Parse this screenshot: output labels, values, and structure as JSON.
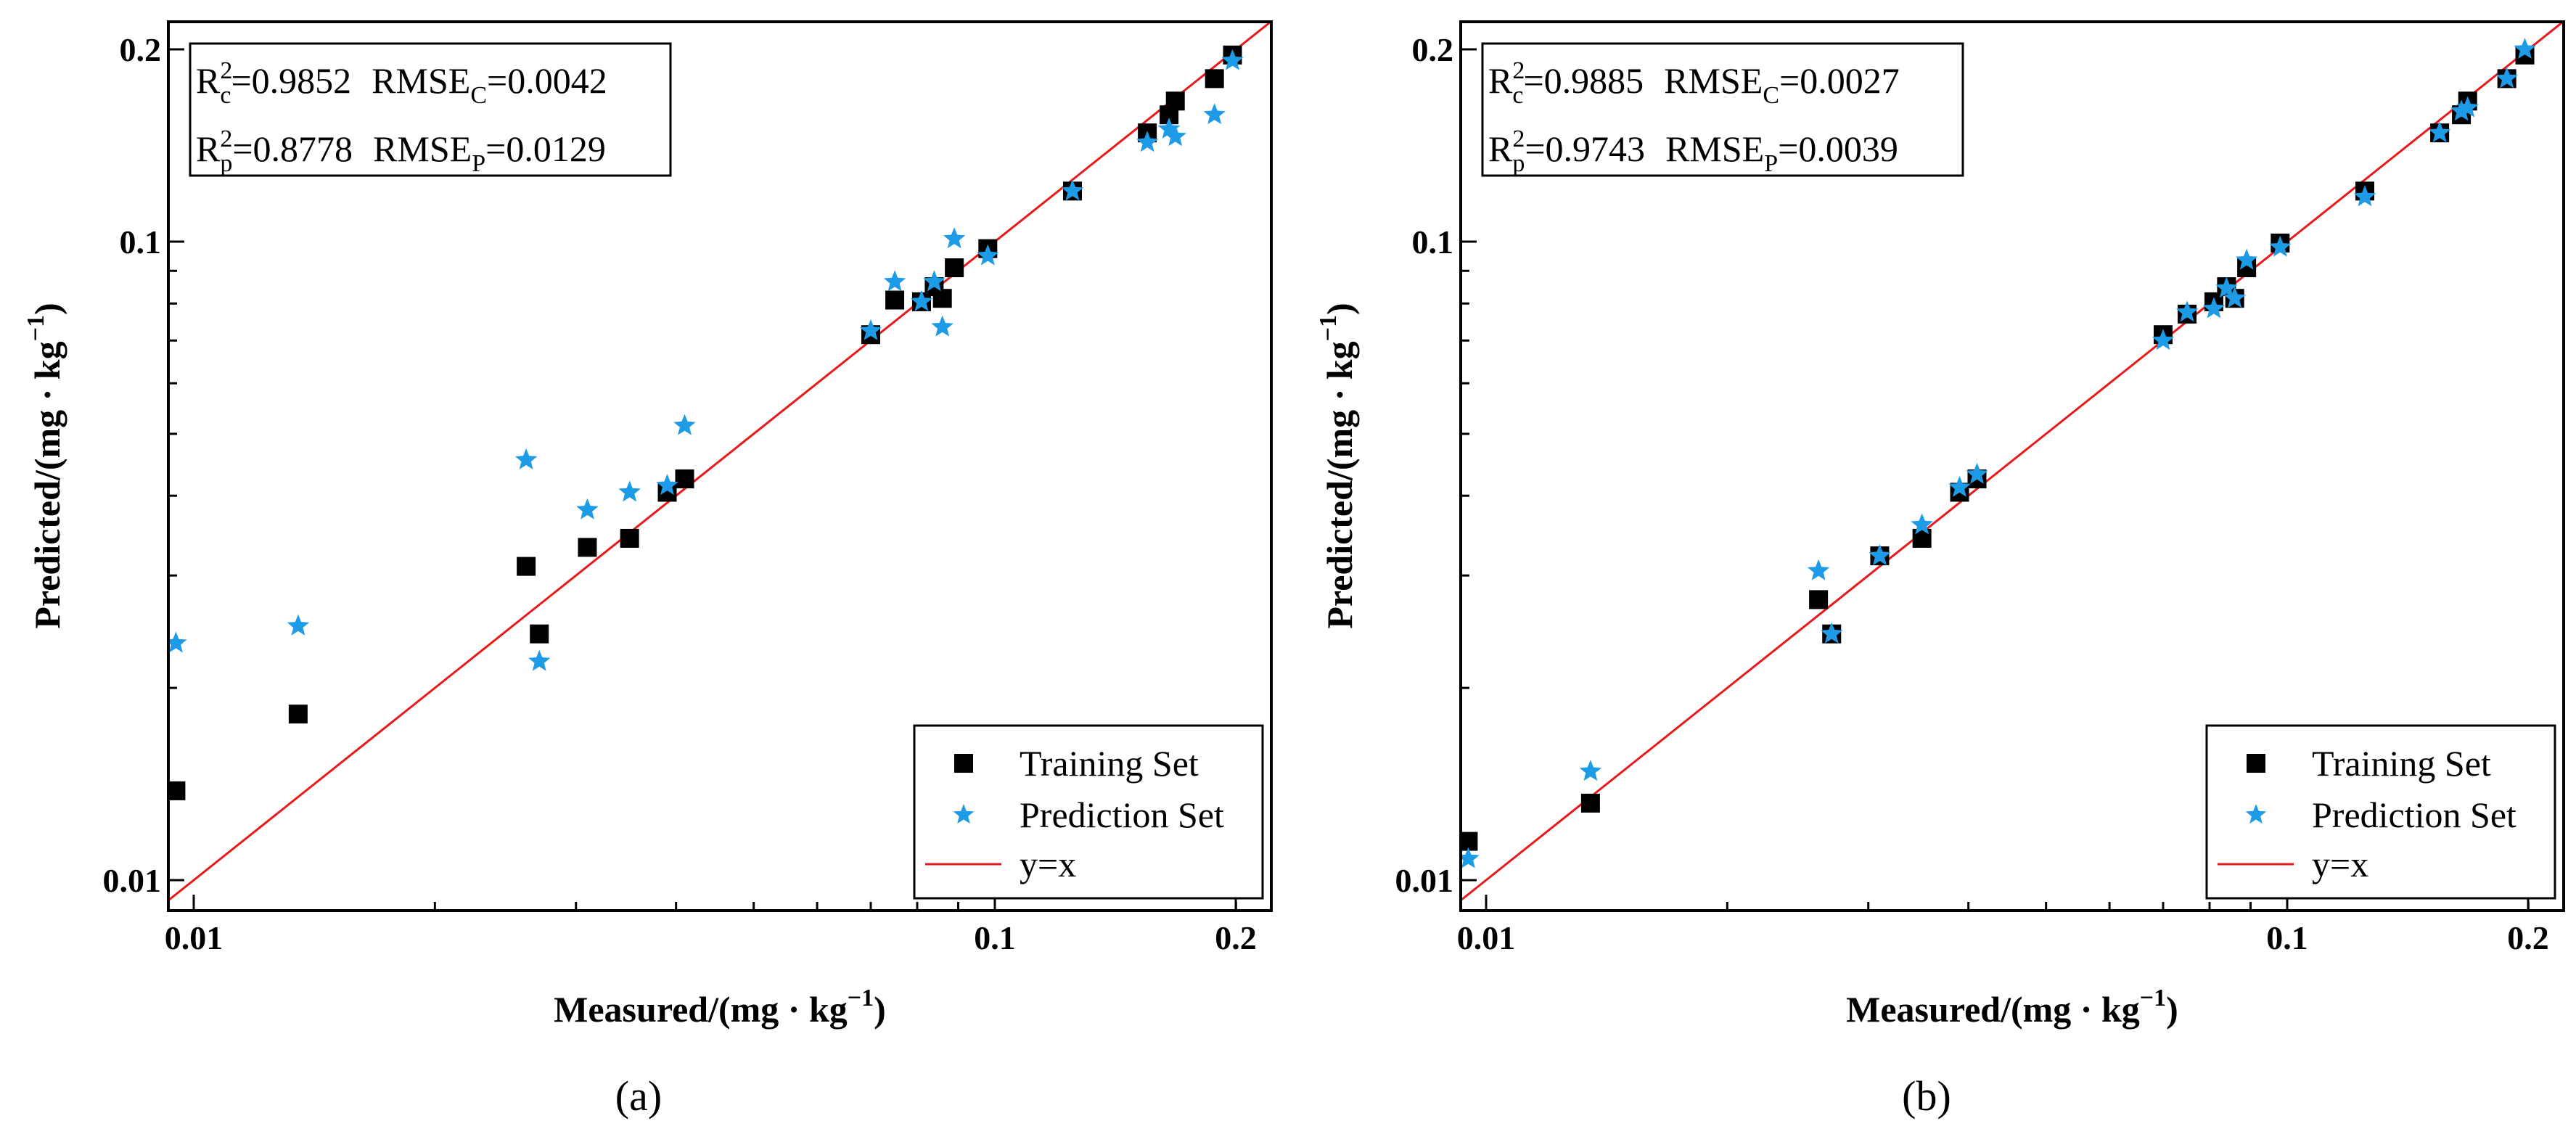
{
  "figure": {
    "type": "scatter",
    "shared": {
      "xlabel_main": "Measured/(mg · kg",
      "ylabel_main": "Predicted/(mg · kg",
      "label_sup": "−1",
      "label_close": ")",
      "x_ticks": [
        "0.01",
        "0.1",
        "0.2"
      ],
      "y_ticks": [
        "0.01",
        "0.1",
        "0.2"
      ],
      "scale": "log",
      "xlim": [
        0.0093,
        0.23
      ],
      "ylim": [
        0.0093,
        0.225
      ],
      "legend": {
        "training": "Training Set",
        "prediction": "Prediction Set",
        "line": "y=x"
      },
      "colors": {
        "training": "#000000",
        "prediction": "#1e9be6",
        "line": "#e8191a"
      }
    },
    "panels": [
      {
        "label": "a",
        "stats": {
          "rc2": "=0.9852",
          "rmsec": "=0.0042",
          "rp2": "=0.8778",
          "rmsep": "=0.0129"
        }
      },
      {
        "label": "b",
        "stats": {
          "rc2": "=0.9885",
          "rmsec": "=0.0027",
          "rp2": "=0.9743",
          "rmsep": "=0.0039"
        }
      }
    ]
  },
  "chart_data": [
    {
      "type": "scatter",
      "title": "(a)",
      "xlabel": "Measured/(mg · kg−1)",
      "ylabel": "Predicted/(mg · kg−1)",
      "xscale": "log",
      "yscale": "log",
      "xlim": [
        0.0093,
        0.23
      ],
      "ylim": [
        0.0093,
        0.225
      ],
      "series": [
        {
          "name": "Training Set",
          "marker": "square",
          "points": [
            [
              0.0095,
              0.0138
            ],
            [
              0.0135,
              0.0182
            ],
            [
              0.026,
              0.031
            ],
            [
              0.027,
              0.0243
            ],
            [
              0.031,
              0.0332
            ],
            [
              0.035,
              0.0343
            ],
            [
              0.039,
              0.0405
            ],
            [
              0.041,
              0.0425
            ],
            [
              0.07,
              0.0715
            ],
            [
              0.075,
              0.081
            ],
            [
              0.081,
              0.0805
            ],
            [
              0.084,
              0.085
            ],
            [
              0.086,
              0.0815
            ],
            [
              0.089,
              0.091
            ],
            [
              0.098,
              0.0975
            ],
            [
              0.125,
              0.12
            ],
            [
              0.155,
              0.148
            ],
            [
              0.165,
              0.158
            ],
            [
              0.168,
              0.166
            ],
            [
              0.188,
              0.18
            ],
            [
              0.198,
              0.196
            ]
          ]
        },
        {
          "name": "Prediction Set",
          "marker": "star",
          "points": [
            [
              0.0095,
              0.0235
            ],
            [
              0.0135,
              0.025
            ],
            [
              0.026,
              0.0455
            ],
            [
              0.027,
              0.022
            ],
            [
              0.031,
              0.038
            ],
            [
              0.035,
              0.0405
            ],
            [
              0.039,
              0.0415
            ],
            [
              0.041,
              0.0515
            ],
            [
              0.07,
              0.0725
            ],
            [
              0.075,
              0.0865
            ],
            [
              0.081,
              0.0805
            ],
            [
              0.084,
              0.0865
            ],
            [
              0.086,
              0.0735
            ],
            [
              0.089,
              0.101
            ],
            [
              0.098,
              0.095
            ],
            [
              0.125,
              0.12
            ],
            [
              0.155,
              0.143
            ],
            [
              0.165,
              0.15
            ],
            [
              0.168,
              0.146
            ],
            [
              0.188,
              0.158
            ],
            [
              0.198,
              0.192
            ]
          ]
        },
        {
          "name": "y=x",
          "type": "line",
          "points": [
            [
              0.0093,
              0.0093
            ],
            [
              0.23,
              0.23
            ]
          ]
        }
      ]
    },
    {
      "type": "scatter",
      "title": "(b)",
      "xlabel": "Measured/(mg · kg−1)",
      "ylabel": "Predicted/(mg · kg−1)",
      "xscale": "log",
      "yscale": "log",
      "xlim": [
        0.0093,
        0.23
      ],
      "ylim": [
        0.0093,
        0.225
      ],
      "series": [
        {
          "name": "Training Set",
          "marker": "square",
          "points": [
            [
              0.0095,
              0.0115
            ],
            [
              0.0135,
              0.0132
            ],
            [
              0.026,
              0.0275
            ],
            [
              0.027,
              0.0243
            ],
            [
              0.031,
              0.0322
            ],
            [
              0.035,
              0.0343
            ],
            [
              0.039,
              0.0405
            ],
            [
              0.041,
              0.0425
            ],
            [
              0.07,
              0.0715
            ],
            [
              0.075,
              0.077
            ],
            [
              0.081,
              0.0805
            ],
            [
              0.084,
              0.085
            ],
            [
              0.086,
              0.0815
            ],
            [
              0.089,
              0.091
            ],
            [
              0.098,
              0.0995
            ],
            [
              0.125,
              0.12
            ],
            [
              0.155,
              0.148
            ],
            [
              0.165,
              0.158
            ],
            [
              0.168,
              0.166
            ],
            [
              0.188,
              0.18
            ],
            [
              0.198,
              0.196
            ]
          ]
        },
        {
          "name": "Prediction Set",
          "marker": "star",
          "points": [
            [
              0.0095,
              0.0108
            ],
            [
              0.0135,
              0.0148
            ],
            [
              0.026,
              0.0305
            ],
            [
              0.027,
              0.0243
            ],
            [
              0.031,
              0.0322
            ],
            [
              0.035,
              0.036
            ],
            [
              0.039,
              0.0412
            ],
            [
              0.041,
              0.0432
            ],
            [
              0.07,
              0.07
            ],
            [
              0.075,
              0.0775
            ],
            [
              0.081,
              0.0785
            ],
            [
              0.084,
              0.0845
            ],
            [
              0.086,
              0.0815
            ],
            [
              0.089,
              0.0935
            ],
            [
              0.098,
              0.098
            ],
            [
              0.125,
              0.1175
            ],
            [
              0.155,
              0.148
            ],
            [
              0.165,
              0.16
            ],
            [
              0.168,
              0.162
            ],
            [
              0.188,
              0.18
            ],
            [
              0.198,
              0.2
            ]
          ]
        },
        {
          "name": "y=x",
          "type": "line",
          "points": [
            [
              0.0093,
              0.0093
            ],
            [
              0.23,
              0.23
            ]
          ]
        }
      ]
    }
  ]
}
